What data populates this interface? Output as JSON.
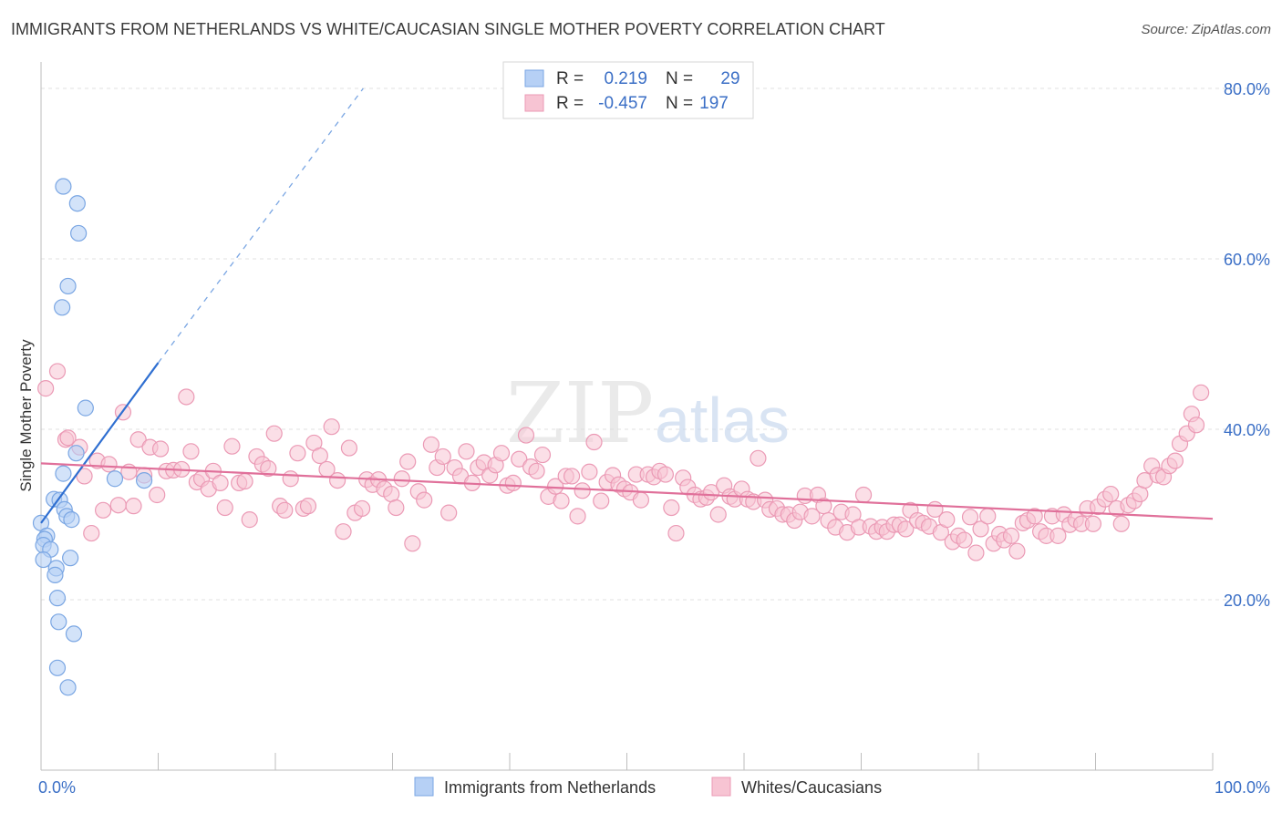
{
  "header": {
    "title": "IMMIGRANTS FROM NETHERLANDS VS WHITE/CAUCASIAN SINGLE MOTHER POVERTY CORRELATION CHART",
    "source": "Source: ZipAtlas.com"
  },
  "watermark": {
    "zip": "ZIP",
    "atlas": "atlas"
  },
  "legend": {
    "r_label": "R =",
    "n_label": "N =",
    "rows": [
      {
        "r": "0.219",
        "n": "29"
      },
      {
        "r": "-0.457",
        "n": "197"
      }
    ]
  },
  "colors": {
    "blue_fill": "#b6d0f5",
    "blue_stroke": "#7aa6e3",
    "blue_line": "#2f6fd1",
    "pink_fill": "#f7c4d3",
    "pink_stroke": "#eb9ab5",
    "pink_line": "#e0709a"
  },
  "chart_data": {
    "type": "scatter",
    "title": "IMMIGRANTS FROM NETHERLANDS VS WHITE/CAUCASIAN SINGLE MOTHER POVERTY CORRELATION CHART",
    "xlabel": "",
    "ylabel": "Single Mother Poverty",
    "xlim": [
      0,
      100
    ],
    "ylim": [
      0,
      80
    ],
    "x_tick_labels": [
      "0.0%",
      "100.0%"
    ],
    "y_ticks": [
      20,
      40,
      60,
      80
    ],
    "y_tick_labels": [
      "20.0%",
      "40.0%",
      "60.0%",
      "80.0%"
    ],
    "grid": true,
    "series": [
      {
        "name": "Immigrants from Netherlands",
        "trend": {
          "x0": 0,
          "y0": 29.0,
          "x1": 10,
          "y1": 47.8,
          "dash_to_x": 27.5,
          "dash_to_y": 80.0
        },
        "points": [
          [
            1.9,
            68.5
          ],
          [
            3.1,
            66.5
          ],
          [
            3.2,
            63.0
          ],
          [
            2.3,
            56.8
          ],
          [
            1.8,
            54.3
          ],
          [
            3.8,
            42.5
          ],
          [
            3.0,
            37.2
          ],
          [
            1.9,
            34.8
          ],
          [
            6.3,
            34.2
          ],
          [
            8.8,
            34.0
          ],
          [
            1.1,
            31.8
          ],
          [
            1.6,
            31.7
          ],
          [
            2.0,
            30.6
          ],
          [
            2.2,
            29.8
          ],
          [
            2.6,
            29.4
          ],
          [
            0.0,
            29.0
          ],
          [
            0.5,
            27.5
          ],
          [
            0.3,
            27.1
          ],
          [
            0.2,
            26.4
          ],
          [
            0.8,
            25.9
          ],
          [
            0.2,
            24.7
          ],
          [
            2.5,
            24.9
          ],
          [
            1.3,
            23.7
          ],
          [
            1.2,
            22.9
          ],
          [
            1.4,
            20.2
          ],
          [
            1.5,
            17.4
          ],
          [
            2.8,
            16.0
          ],
          [
            1.4,
            12.0
          ],
          [
            2.3,
            9.7
          ]
        ]
      },
      {
        "name": "Whites/Caucasians",
        "trend": {
          "x0": 0,
          "y0": 36.0,
          "x1": 100,
          "y1": 29.5
        },
        "points": [
          [
            0.4,
            44.8
          ],
          [
            1.4,
            46.8
          ],
          [
            2.1,
            38.8
          ],
          [
            2.3,
            39.0
          ],
          [
            3.3,
            37.9
          ],
          [
            3.7,
            34.5
          ],
          [
            4.3,
            27.8
          ],
          [
            4.8,
            36.3
          ],
          [
            5.3,
            30.5
          ],
          [
            5.8,
            35.9
          ],
          [
            6.6,
            31.1
          ],
          [
            7.0,
            42.0
          ],
          [
            7.5,
            35.0
          ],
          [
            7.9,
            31.0
          ],
          [
            8.3,
            38.8
          ],
          [
            8.8,
            34.6
          ],
          [
            9.3,
            37.9
          ],
          [
            9.9,
            32.3
          ],
          [
            10.2,
            37.7
          ],
          [
            10.7,
            35.1
          ],
          [
            11.3,
            35.2
          ],
          [
            12.0,
            35.3
          ],
          [
            12.4,
            43.8
          ],
          [
            12.8,
            37.4
          ],
          [
            13.3,
            33.8
          ],
          [
            13.7,
            34.2
          ],
          [
            14.3,
            33.0
          ],
          [
            14.7,
            35.1
          ],
          [
            15.3,
            33.7
          ],
          [
            15.7,
            30.8
          ],
          [
            16.3,
            38.0
          ],
          [
            16.9,
            33.7
          ],
          [
            17.4,
            33.9
          ],
          [
            17.8,
            29.4
          ],
          [
            18.4,
            36.8
          ],
          [
            18.9,
            35.9
          ],
          [
            19.4,
            35.4
          ],
          [
            19.9,
            39.5
          ],
          [
            20.4,
            31.0
          ],
          [
            20.8,
            30.5
          ],
          [
            21.3,
            34.2
          ],
          [
            21.9,
            37.2
          ],
          [
            22.4,
            30.7
          ],
          [
            22.8,
            31.0
          ],
          [
            23.3,
            38.4
          ],
          [
            23.8,
            36.9
          ],
          [
            24.4,
            35.3
          ],
          [
            24.8,
            40.3
          ],
          [
            25.3,
            34.0
          ],
          [
            25.8,
            28.0
          ],
          [
            26.3,
            37.8
          ],
          [
            26.8,
            30.2
          ],
          [
            27.4,
            30.7
          ],
          [
            27.8,
            34.1
          ],
          [
            28.3,
            33.5
          ],
          [
            28.8,
            34.1
          ],
          [
            29.3,
            33.0
          ],
          [
            29.9,
            32.4
          ],
          [
            30.3,
            30.8
          ],
          [
            30.8,
            34.2
          ],
          [
            31.3,
            36.2
          ],
          [
            31.7,
            26.6
          ],
          [
            32.2,
            32.7
          ],
          [
            32.7,
            31.7
          ],
          [
            33.3,
            38.2
          ],
          [
            33.8,
            35.5
          ],
          [
            34.3,
            36.8
          ],
          [
            34.8,
            30.2
          ],
          [
            35.3,
            35.5
          ],
          [
            35.8,
            34.5
          ],
          [
            36.3,
            37.4
          ],
          [
            36.8,
            33.7
          ],
          [
            37.3,
            35.5
          ],
          [
            37.8,
            36.1
          ],
          [
            38.3,
            34.6
          ],
          [
            38.8,
            35.8
          ],
          [
            39.3,
            37.2
          ],
          [
            39.8,
            33.4
          ],
          [
            40.3,
            33.7
          ],
          [
            40.8,
            36.5
          ],
          [
            41.4,
            39.3
          ],
          [
            41.8,
            35.6
          ],
          [
            42.3,
            35.1
          ],
          [
            42.8,
            37.0
          ],
          [
            43.3,
            32.1
          ],
          [
            43.9,
            33.3
          ],
          [
            44.4,
            31.6
          ],
          [
            44.8,
            34.5
          ],
          [
            45.3,
            34.5
          ],
          [
            45.8,
            29.8
          ],
          [
            46.2,
            32.8
          ],
          [
            46.8,
            35.0
          ],
          [
            47.2,
            38.5
          ],
          [
            47.8,
            31.6
          ],
          [
            48.3,
            33.8
          ],
          [
            48.8,
            34.6
          ],
          [
            49.3,
            33.5
          ],
          [
            49.8,
            33.0
          ],
          [
            50.3,
            32.6
          ],
          [
            50.8,
            34.7
          ],
          [
            51.2,
            31.7
          ],
          [
            51.8,
            34.7
          ],
          [
            52.3,
            34.4
          ],
          [
            52.8,
            35.1
          ],
          [
            53.3,
            34.7
          ],
          [
            53.8,
            30.8
          ],
          [
            54.2,
            27.8
          ],
          [
            54.8,
            34.3
          ],
          [
            55.2,
            33.2
          ],
          [
            55.8,
            32.3
          ],
          [
            56.3,
            31.8
          ],
          [
            56.8,
            32.0
          ],
          [
            57.2,
            32.6
          ],
          [
            57.8,
            30.0
          ],
          [
            58.3,
            33.4
          ],
          [
            58.8,
            32.1
          ],
          [
            59.2,
            31.8
          ],
          [
            59.8,
            33.0
          ],
          [
            60.3,
            31.8
          ],
          [
            60.8,
            31.5
          ],
          [
            61.2,
            36.6
          ],
          [
            61.8,
            31.7
          ],
          [
            62.2,
            30.6
          ],
          [
            62.8,
            30.7
          ],
          [
            63.3,
            30.0
          ],
          [
            63.8,
            30.0
          ],
          [
            64.3,
            29.3
          ],
          [
            64.8,
            30.3
          ],
          [
            65.2,
            32.2
          ],
          [
            65.8,
            29.8
          ],
          [
            66.3,
            32.3
          ],
          [
            66.8,
            31.0
          ],
          [
            67.2,
            29.3
          ],
          [
            67.8,
            28.5
          ],
          [
            68.3,
            30.3
          ],
          [
            68.8,
            27.9
          ],
          [
            69.3,
            30.0
          ],
          [
            69.8,
            28.5
          ],
          [
            70.2,
            32.3
          ],
          [
            70.8,
            28.6
          ],
          [
            71.3,
            28.0
          ],
          [
            71.8,
            28.5
          ],
          [
            72.2,
            28.0
          ],
          [
            72.8,
            28.8
          ],
          [
            73.3,
            28.8
          ],
          [
            73.8,
            28.3
          ],
          [
            74.2,
            30.5
          ],
          [
            74.8,
            29.3
          ],
          [
            75.3,
            29.0
          ],
          [
            75.8,
            28.6
          ],
          [
            76.3,
            30.6
          ],
          [
            76.8,
            27.9
          ],
          [
            77.3,
            29.4
          ],
          [
            77.8,
            26.8
          ],
          [
            78.3,
            27.5
          ],
          [
            78.8,
            27.0
          ],
          [
            79.3,
            29.7
          ],
          [
            79.8,
            25.5
          ],
          [
            80.2,
            28.3
          ],
          [
            80.8,
            29.8
          ],
          [
            81.3,
            26.6
          ],
          [
            81.8,
            27.7
          ],
          [
            82.2,
            27.0
          ],
          [
            82.8,
            27.5
          ],
          [
            83.3,
            25.7
          ],
          [
            83.8,
            29.0
          ],
          [
            84.2,
            29.3
          ],
          [
            84.8,
            29.8
          ],
          [
            85.3,
            28.0
          ],
          [
            85.8,
            27.5
          ],
          [
            86.3,
            29.8
          ],
          [
            86.8,
            27.5
          ],
          [
            87.3,
            30.0
          ],
          [
            87.8,
            28.8
          ],
          [
            88.3,
            29.4
          ],
          [
            88.8,
            28.9
          ],
          [
            89.3,
            30.7
          ],
          [
            89.8,
            28.9
          ],
          [
            90.2,
            30.9
          ],
          [
            90.8,
            31.8
          ],
          [
            91.3,
            32.4
          ],
          [
            91.8,
            30.7
          ],
          [
            92.2,
            28.9
          ],
          [
            92.8,
            31.1
          ],
          [
            93.3,
            31.6
          ],
          [
            93.8,
            32.4
          ],
          [
            94.2,
            34.0
          ],
          [
            94.8,
            35.7
          ],
          [
            95.3,
            34.6
          ],
          [
            95.8,
            34.4
          ],
          [
            96.3,
            35.7
          ],
          [
            96.8,
            36.3
          ],
          [
            97.2,
            38.3
          ],
          [
            97.8,
            39.5
          ],
          [
            98.2,
            41.8
          ],
          [
            98.6,
            40.5
          ],
          [
            99.0,
            44.3
          ]
        ]
      }
    ]
  },
  "bottom_legend": {
    "items": [
      {
        "label": "Immigrants from Netherlands"
      },
      {
        "label": "Whites/Caucasians"
      }
    ]
  }
}
